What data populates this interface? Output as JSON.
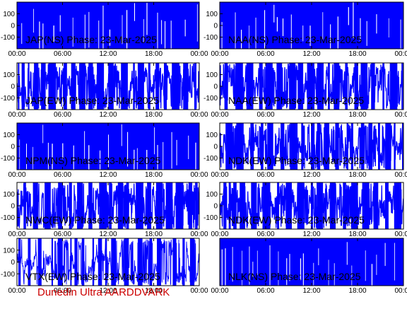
{
  "credit": "Dunedin Ultra AARDDVARK",
  "colors": {
    "trace": "#0000ff",
    "axes": "#000000",
    "credit": "#cc0000",
    "background": "#ffffff"
  },
  "chart_data": [
    {
      "type": "line",
      "title": "JAP(NS) Phase: 23-Mar-2025",
      "ylim": [
        -200,
        200
      ],
      "yticks": [
        100,
        0,
        -100
      ],
      "xlim": [
        "00:00",
        "24:00"
      ],
      "xticks": [
        "00:00",
        "06:00",
        "12:00",
        "18:00",
        "00:00"
      ],
      "pattern": "dense-saturated"
    },
    {
      "type": "line",
      "title": "NAA(NS) Phase: 23-Mar-2025",
      "ylim": [
        -200,
        200
      ],
      "yticks": [
        100,
        0,
        -100
      ],
      "xlim": [
        "00:00",
        "24:00"
      ],
      "xticks": [
        "00:00",
        "06:00",
        "12:00",
        "18:00",
        "00:00"
      ],
      "pattern": "dense-saturated"
    },
    {
      "type": "line",
      "title": "JAP(EW) Phase: 23-Mar-2025",
      "ylim": [
        -200,
        200
      ],
      "yticks": [
        100,
        0,
        -100
      ],
      "xlim": [
        "00:00",
        "24:00"
      ],
      "xticks": [
        "00:00",
        "06:00",
        "12:00",
        "18:00",
        "00:00"
      ],
      "pattern": "wrapping"
    },
    {
      "type": "line",
      "title": "NAA(EW) Phase: 23-Mar-2025",
      "ylim": [
        -200,
        200
      ],
      "yticks": [
        100,
        0,
        -100
      ],
      "xlim": [
        "00:00",
        "24:00"
      ],
      "xticks": [
        "00:00",
        "06:00",
        "12:00",
        "18:00",
        "00:00"
      ],
      "pattern": "wrapping"
    },
    {
      "type": "line",
      "title": "NPM(NS) Phase: 23-Mar-2025",
      "ylim": [
        -200,
        200
      ],
      "yticks": [
        100,
        0,
        -100
      ],
      "xlim": [
        "00:00",
        "24:00"
      ],
      "xticks": [
        "00:00",
        "06:00",
        "12:00",
        "18:00",
        "00:00"
      ],
      "pattern": "dense-saturated"
    },
    {
      "type": "line",
      "title": "NDK(EW) Phase: 23-Mar-2025",
      "ylim": [
        -200,
        200
      ],
      "yticks": [
        100,
        0,
        -100
      ],
      "xlim": [
        "00:00",
        "24:00"
      ],
      "xticks": [
        "00:00",
        "06:00",
        "12:00",
        "18:00",
        "00:00"
      ],
      "pattern": "wrapping"
    },
    {
      "type": "line",
      "title": "NWC(EW) Phase: 23-Mar-2025",
      "ylim": [
        -200,
        200
      ],
      "yticks": [
        100,
        0,
        -100
      ],
      "xlim": [
        "00:00",
        "24:00"
      ],
      "xticks": [
        "00:00",
        "06:00",
        "12:00",
        "18:00",
        "00:00"
      ],
      "pattern": "wrapping"
    },
    {
      "type": "line",
      "title": "NDK(EW) Phase: 23-Mar-2025",
      "ylim": [
        -200,
        200
      ],
      "yticks": [
        100,
        0,
        -100
      ],
      "xlim": [
        "00:00",
        "24:00"
      ],
      "xticks": [
        "00:00",
        "06:00",
        "12:00",
        "18:00",
        "00:00"
      ],
      "pattern": "wrapping"
    },
    {
      "type": "line",
      "title": "VTX(EW) Phase: 23-Mar-2025",
      "ylim": [
        -200,
        200
      ],
      "yticks": [
        100,
        0,
        -100
      ],
      "xlim": [
        "00:00",
        "24:00"
      ],
      "xticks": [
        "00:00",
        "06:00",
        "12:00",
        "18:00",
        "00:00"
      ],
      "pattern": "wrapping-sparse"
    },
    {
      "type": "line",
      "title": "NLK(NS) Phase: 23-Mar-2025",
      "ylim": [
        -200,
        200
      ],
      "yticks": [],
      "xlim": [
        "00:00",
        "24:00"
      ],
      "xticks": [
        "00:00",
        "06:00",
        "12:00",
        "18:00",
        "00:00"
      ],
      "pattern": "dense-saturated"
    }
  ]
}
